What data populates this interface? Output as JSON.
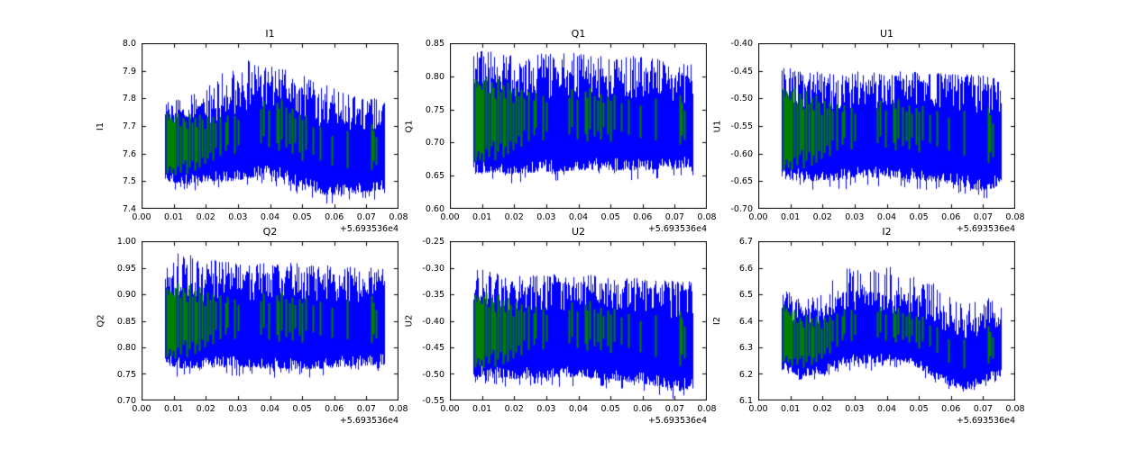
{
  "figure": {
    "background": "#ffffff"
  },
  "colors": {
    "signal_line": "#0000ff",
    "flag_marker": "#008000",
    "frame": "#000000",
    "text": "#000000"
  },
  "x_axis": {
    "min": 0.0,
    "max": 0.08,
    "tick_values": [
      0.0,
      0.01,
      0.02,
      0.03,
      0.04,
      0.05,
      0.06,
      0.07,
      0.08
    ],
    "tick_labels": [
      "0.00",
      "0.01",
      "0.02",
      "0.03",
      "0.04",
      "0.05",
      "0.06",
      "0.07",
      "0.08"
    ],
    "offset_label": "+5.693536e4"
  },
  "flagged_segments": [
    [
      0.0078,
      0.1,
      0.88
    ],
    [
      0.0082,
      0.15,
      0.8
    ],
    [
      0.0086,
      0.2,
      0.85
    ],
    [
      0.0092,
      0.12,
      0.82
    ],
    [
      0.0098,
      0.18,
      0.78
    ],
    [
      0.0105,
      0.1,
      0.86
    ],
    [
      0.0112,
      0.22,
      0.9
    ],
    [
      0.012,
      0.15,
      0.75
    ],
    [
      0.0128,
      0.25,
      0.85
    ],
    [
      0.0135,
      0.3,
      0.8
    ],
    [
      0.0141,
      0.12,
      0.7
    ],
    [
      0.015,
      0.2,
      0.88
    ],
    [
      0.0158,
      0.28,
      0.76
    ],
    [
      0.0165,
      0.15,
      0.82
    ],
    [
      0.0172,
      0.25,
      0.7
    ],
    [
      0.018,
      0.18,
      0.85
    ],
    [
      0.0188,
      0.3,
      0.78
    ],
    [
      0.0196,
      0.22,
      0.66
    ],
    [
      0.0205,
      0.28,
      0.8
    ],
    [
      0.0213,
      0.35,
      0.72
    ],
    [
      0.0222,
      0.25,
      0.78
    ],
    [
      0.023,
      0.4,
      0.7
    ],
    [
      0.0243,
      0.3,
      0.76
    ],
    [
      0.026,
      0.35,
      0.68
    ],
    [
      0.0268,
      0.42,
      0.75
    ],
    [
      0.029,
      0.3,
      0.72
    ],
    [
      0.03,
      0.38,
      0.66
    ],
    [
      0.037,
      0.35,
      0.7
    ],
    [
      0.0378,
      0.42,
      0.78
    ],
    [
      0.0395,
      0.3,
      0.68
    ],
    [
      0.042,
      0.35,
      0.76
    ],
    [
      0.0428,
      0.28,
      0.7
    ],
    [
      0.0436,
      0.4,
      0.8
    ],
    [
      0.0448,
      0.33,
      0.72
    ],
    [
      0.046,
      0.38,
      0.68
    ],
    [
      0.0468,
      0.3,
      0.74
    ],
    [
      0.0478,
      0.42,
      0.66
    ],
    [
      0.0492,
      0.35,
      0.72
    ],
    [
      0.05,
      0.28,
      0.68
    ],
    [
      0.051,
      0.4,
      0.74
    ],
    [
      0.0533,
      0.38,
      0.66
    ],
    [
      0.0555,
      0.35,
      0.7
    ],
    [
      0.0592,
      0.32,
      0.64
    ],
    [
      0.064,
      0.3,
      0.72
    ],
    [
      0.0715,
      0.25,
      0.78
    ],
    [
      0.0722,
      0.35,
      0.7
    ],
    [
      0.073,
      0.3,
      0.62
    ]
  ],
  "chart_data": [
    {
      "type": "line",
      "title": "I1",
      "ylabel": "I1",
      "ylim": [
        7.4,
        8.0
      ],
      "ytick_values": [
        7.4,
        7.5,
        7.6,
        7.7,
        7.8,
        7.9,
        8.0
      ],
      "ytick_labels": [
        "7.4",
        "7.5",
        "7.6",
        "7.7",
        "7.8",
        "7.9",
        "8.0"
      ],
      "x_range": [
        0.0073,
        0.0755
      ],
      "envelope": [
        [
          0.0073,
          7.5,
          7.78,
          7.8
        ],
        [
          0.012,
          7.49,
          7.77,
          7.8
        ],
        [
          0.02,
          7.5,
          7.79,
          7.84
        ],
        [
          0.028,
          7.5,
          7.82,
          7.93
        ],
        [
          0.033,
          7.51,
          7.86,
          7.94
        ],
        [
          0.04,
          7.52,
          7.87,
          7.92
        ],
        [
          0.045,
          7.5,
          7.87,
          7.92
        ],
        [
          0.05,
          7.47,
          7.84,
          7.89
        ],
        [
          0.057,
          7.45,
          7.79,
          7.85
        ],
        [
          0.065,
          7.45,
          7.77,
          7.81
        ],
        [
          0.0755,
          7.47,
          7.78,
          7.8
        ]
      ],
      "seed": 11
    },
    {
      "type": "line",
      "title": "Q1",
      "ylabel": "Q1",
      "ylim": [
        0.6,
        0.85
      ],
      "ytick_values": [
        0.6,
        0.65,
        0.7,
        0.75,
        0.8,
        0.85
      ],
      "ytick_labels": [
        "0.60",
        "0.65",
        "0.70",
        "0.75",
        "0.80",
        "0.85"
      ],
      "x_range": [
        0.0073,
        0.0755
      ],
      "envelope": [
        [
          0.0073,
          0.655,
          0.815,
          0.843
        ],
        [
          0.02,
          0.653,
          0.815,
          0.832
        ],
        [
          0.04,
          0.658,
          0.815,
          0.838
        ],
        [
          0.06,
          0.658,
          0.81,
          0.83
        ],
        [
          0.0755,
          0.663,
          0.8,
          0.82
        ]
      ],
      "seed": 22
    },
    {
      "type": "line",
      "title": "U1",
      "ylabel": "U1",
      "ylim": [
        -0.7,
        -0.4
      ],
      "ytick_values": [
        -0.7,
        -0.65,
        -0.6,
        -0.55,
        -0.5,
        -0.45,
        -0.4
      ],
      "ytick_labels": [
        "-0.70",
        "-0.65",
        "-0.60",
        "-0.55",
        "-0.50",
        "-0.45",
        "-0.40"
      ],
      "x_range": [
        0.0073,
        0.0755
      ],
      "envelope": [
        [
          0.0073,
          -0.648,
          -0.46,
          -0.443
        ],
        [
          0.02,
          -0.65,
          -0.468,
          -0.452
        ],
        [
          0.04,
          -0.642,
          -0.465,
          -0.45
        ],
        [
          0.06,
          -0.655,
          -0.468,
          -0.455
        ],
        [
          0.069,
          -0.668,
          -0.472,
          -0.458
        ],
        [
          0.0755,
          -0.66,
          -0.475,
          -0.462
        ]
      ],
      "seed": 33
    },
    {
      "type": "line",
      "title": "Q2",
      "ylabel": "Q2",
      "ylim": [
        0.7,
        1.0
      ],
      "ytick_values": [
        0.7,
        0.75,
        0.8,
        0.85,
        0.9,
        0.95,
        1.0
      ],
      "ytick_labels": [
        "0.70",
        "0.75",
        "0.80",
        "0.85",
        "0.90",
        "0.95",
        "1.00"
      ],
      "x_range": [
        0.0073,
        0.0755
      ],
      "envelope": [
        [
          0.0073,
          0.765,
          0.93,
          0.945
        ],
        [
          0.011,
          0.76,
          0.938,
          0.978
        ],
        [
          0.03,
          0.763,
          0.94,
          0.958
        ],
        [
          0.05,
          0.758,
          0.942,
          0.96
        ],
        [
          0.0755,
          0.768,
          0.932,
          0.95
        ]
      ],
      "seed": 44
    },
    {
      "type": "line",
      "title": "U2",
      "ylabel": "U2",
      "ylim": [
        -0.55,
        -0.25
      ],
      "ytick_values": [
        -0.55,
        -0.5,
        -0.45,
        -0.4,
        -0.35,
        -0.3,
        -0.25
      ],
      "ytick_labels": [
        "-0.55",
        "-0.50",
        "-0.45",
        "-0.40",
        "-0.35",
        "-0.30",
        "-0.25"
      ],
      "x_range": [
        0.0073,
        0.0755
      ],
      "envelope": [
        [
          0.0073,
          -0.505,
          -0.33,
          -0.3
        ],
        [
          0.02,
          -0.51,
          -0.33,
          -0.315
        ],
        [
          0.04,
          -0.505,
          -0.325,
          -0.31
        ],
        [
          0.06,
          -0.518,
          -0.335,
          -0.32
        ],
        [
          0.071,
          -0.535,
          -0.34,
          -0.325
        ],
        [
          0.0755,
          -0.52,
          -0.335,
          -0.325
        ]
      ],
      "seed": 55
    },
    {
      "type": "line",
      "title": "I2",
      "ylabel": "I2",
      "ylim": [
        6.1,
        6.7
      ],
      "ytick_values": [
        6.1,
        6.2,
        6.3,
        6.4,
        6.5,
        6.6,
        6.7
      ],
      "ytick_labels": [
        "6.1",
        "6.2",
        "6.3",
        "6.4",
        "6.5",
        "6.6",
        "6.7"
      ],
      "x_range": [
        0.0073,
        0.0755
      ],
      "envelope": [
        [
          0.0073,
          6.22,
          6.5,
          6.53
        ],
        [
          0.013,
          6.19,
          6.45,
          6.5
        ],
        [
          0.02,
          6.2,
          6.46,
          6.52
        ],
        [
          0.028,
          6.24,
          6.52,
          6.615
        ],
        [
          0.035,
          6.24,
          6.52,
          6.59
        ],
        [
          0.042,
          6.25,
          6.5,
          6.61
        ],
        [
          0.047,
          6.24,
          6.5,
          6.6
        ],
        [
          0.053,
          6.2,
          6.48,
          6.56
        ],
        [
          0.06,
          6.15,
          6.42,
          6.5
        ],
        [
          0.065,
          6.14,
          6.4,
          6.47
        ],
        [
          0.071,
          6.17,
          6.44,
          6.49
        ],
        [
          0.0755,
          6.2,
          6.42,
          6.46
        ]
      ],
      "seed": 66
    }
  ]
}
